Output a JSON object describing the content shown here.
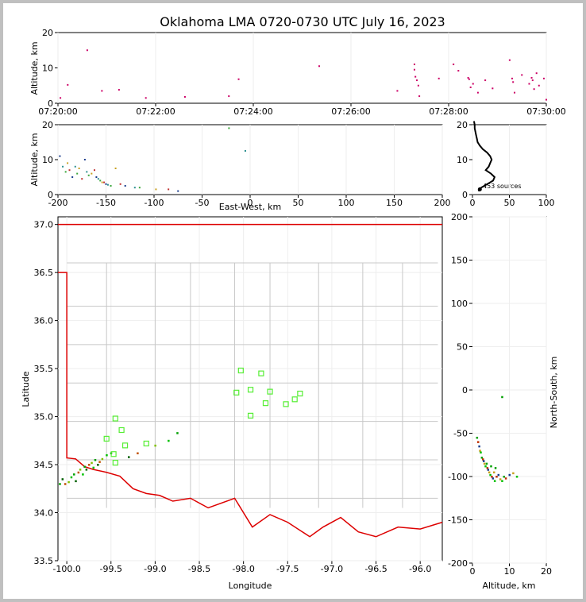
{
  "chart_data": [
    {
      "type": "scatter",
      "panel": "time-altitude",
      "title": "Oklahoma LMA 0720-0730 UTC July 16, 2023",
      "ylabel": "Altitude, km",
      "ylim": [
        0,
        20
      ],
      "yticks": [
        "0",
        "10",
        "20"
      ],
      "xticks": [
        "07:20:00",
        "07:22:00",
        "07:24:00",
        "07:26:00",
        "07:28:00",
        "07:30:00"
      ],
      "xlim_minutes": [
        0,
        10
      ],
      "x_minutes": [
        0.05,
        0.2,
        0.6,
        0.9,
        1.25,
        1.8,
        2.6,
        3.5,
        3.7,
        5.35,
        6.95,
        7.3,
        7.3,
        7.32,
        7.35,
        7.38,
        7.4,
        8.1,
        8.2,
        8.5,
        9.95,
        10,
        7.8,
        8.4,
        8.42,
        8.45,
        8.6,
        8.75,
        8.9,
        9.25,
        9.3,
        9.32,
        9.35,
        9.5,
        9.65,
        9.7,
        9.72,
        9.75,
        9.8,
        9.85
      ],
      "y_km": [
        1.5,
        5.2,
        15,
        3.5,
        3.8,
        1.5,
        1.8,
        2,
        6.8,
        10.5,
        3.5,
        11,
        9.5,
        7.5,
        6.5,
        5,
        2,
        11,
        9.2,
        5.5,
        7,
        1,
        7,
        7.2,
        6.8,
        4.5,
        3,
        6.5,
        4.2,
        12.2,
        7,
        6,
        3,
        8,
        5.5,
        7.2,
        6.5,
        4,
        8.5,
        5
      ]
    },
    {
      "type": "scatter",
      "panel": "east-west-altitude",
      "ylabel": "Altitude, km",
      "xlabel": "East-West, km",
      "xlim": [
        -200,
        200
      ],
      "ylim": [
        0,
        20
      ],
      "xticks": [
        "-200",
        "-150",
        "-100",
        "-50",
        "0",
        "50",
        "100",
        "150",
        "200"
      ],
      "yticks": [
        "0",
        "10",
        "20"
      ],
      "x_km": [
        -198,
        -195,
        -192,
        -190,
        -188,
        -185,
        -182,
        -180,
        -178,
        -175,
        -172,
        -170,
        -168,
        -165,
        -162,
        -160,
        -158,
        -156,
        -154,
        -152,
        -150,
        -148,
        -145,
        -140,
        -135,
        -130,
        -120,
        -115,
        -98,
        -85,
        -75,
        -5,
        -22
      ],
      "y_km": [
        11,
        8,
        6.5,
        9,
        7,
        5,
        8,
        6,
        7.5,
        4.5,
        10,
        6.5,
        5.5,
        6,
        7,
        5,
        4.5,
        4,
        3.5,
        3.5,
        3,
        2.8,
        2.5,
        7.5,
        3,
        2.5,
        2,
        2,
        1.5,
        1.5,
        1,
        12.5,
        19
      ]
    },
    {
      "type": "line",
      "panel": "altitude-histogram",
      "xlim": [
        0,
        100
      ],
      "ylim": [
        0,
        20
      ],
      "xticks": [
        "0",
        "50",
        "100"
      ],
      "yticks": [
        "0",
        "10",
        "20"
      ],
      "annotation": "453 sources",
      "counts": [
        8,
        12,
        20,
        28,
        30,
        25,
        18,
        22,
        24,
        26,
        24,
        20,
        14,
        10,
        7,
        6,
        5,
        4,
        3,
        3,
        2
      ],
      "altitude_km": [
        1,
        2,
        3,
        4,
        5,
        6,
        7,
        8,
        9,
        10,
        11,
        12,
        13,
        14,
        15,
        16,
        17,
        18,
        19,
        20,
        21
      ]
    },
    {
      "type": "scatter",
      "panel": "map",
      "xlabel": "Longitude",
      "ylabel": "Latitude",
      "xlim": [
        -100.1,
        -95.75
      ],
      "ylim": [
        33.5,
        37.08
      ],
      "xticks": [
        "-100.0",
        "-99.5",
        "-99.0",
        "-98.5",
        "-98.0",
        "-97.5",
        "-97.0",
        "-96.5",
        "-96.0"
      ],
      "yticks": [
        "33.5",
        "34.0",
        "34.5",
        "35.0",
        "35.5",
        "36.0",
        "36.5",
        "37.0"
      ],
      "station_lon": [
        -98.03,
        -97.92,
        -97.8,
        -97.7,
        -98.08,
        -97.75,
        -97.52,
        -97.42,
        -97.36,
        -97.92,
        -99.45,
        -99.38,
        -99.55,
        -99.34,
        -99.47,
        -99.1,
        -99.45
      ],
      "station_lat": [
        35.48,
        35.28,
        35.45,
        35.26,
        35.25,
        35.14,
        35.13,
        35.18,
        35.24,
        35.01,
        34.98,
        34.86,
        34.77,
        34.7,
        34.61,
        34.72,
        34.52
      ],
      "source_lon": [
        -100.08,
        -100.05,
        -100.02,
        -99.98,
        -99.95,
        -99.92,
        -99.9,
        -99.87,
        -99.85,
        -99.82,
        -99.8,
        -99.78,
        -99.75,
        -99.72,
        -99.7,
        -99.68,
        -99.65,
        -99.63,
        -99.6,
        -99.55,
        -99.5,
        -99.3,
        -99.2,
        -99.0,
        -98.85,
        -98.75
      ],
      "source_lat": [
        34.3,
        34.35,
        34.3,
        34.32,
        34.37,
        34.4,
        34.33,
        34.42,
        34.45,
        34.4,
        34.48,
        34.45,
        34.5,
        34.52,
        34.47,
        34.55,
        34.5,
        34.53,
        34.56,
        34.6,
        34.62,
        34.58,
        34.62,
        34.7,
        34.75,
        34.83
      ]
    },
    {
      "type": "scatter",
      "panel": "altitude-north-south",
      "xlabel": "Altitude, km",
      "ylabel": "North-South, km",
      "xlim": [
        0,
        20
      ],
      "ylim": [
        -200,
        200
      ],
      "xticks": [
        "0",
        "10",
        "20"
      ],
      "yticks": [
        "-200",
        "-150",
        "-100",
        "-50",
        "0",
        "50",
        "100",
        "150",
        "200"
      ],
      "alt_km": [
        1.2,
        1.5,
        1.8,
        2.0,
        2.2,
        2.5,
        2.8,
        3,
        3.2,
        3.5,
        3.8,
        4,
        4.2,
        4.5,
        4.8,
        5,
        5.2,
        5.5,
        5.8,
        6,
        6.2,
        6.5,
        7,
        7.5,
        8,
        8.5,
        9,
        10,
        11,
        12,
        8
      ],
      "ns_km": [
        -55,
        -60,
        -65,
        -70,
        -72,
        -78,
        -80,
        -82,
        -85,
        -88,
        -85,
        -90,
        -92,
        -95,
        -98,
        -88,
        -100,
        -102,
        -95,
        -105,
        -90,
        -100,
        -98,
        -103,
        -105,
        -100,
        -102,
        -98,
        -96,
        -100,
        -8
      ]
    }
  ]
}
